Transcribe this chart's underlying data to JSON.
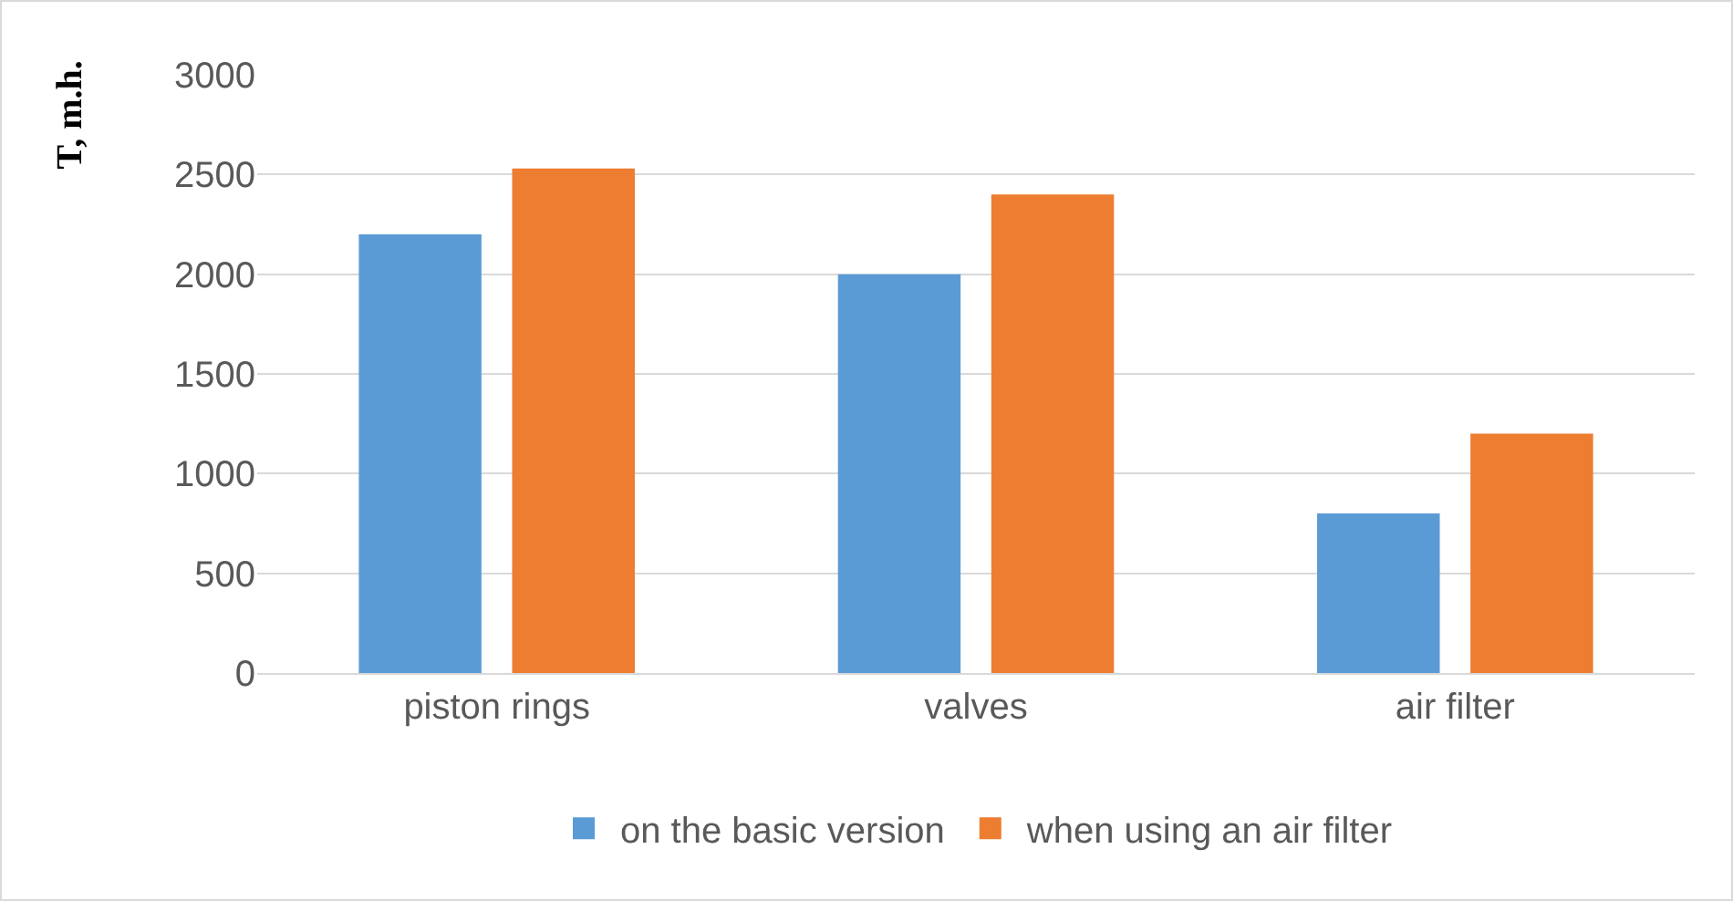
{
  "chart_data": {
    "type": "bar",
    "ylabel": "T, m.h.",
    "categories": [
      "piston rings",
      "valves",
      "air filter"
    ],
    "series": [
      {
        "name": "on the basic version",
        "color": "#5b9bd5",
        "values": [
          2200,
          2000,
          800
        ]
      },
      {
        "name": "when using an air filter",
        "color": "#ed7d31",
        "values": [
          2530,
          2400,
          1200
        ]
      }
    ],
    "ylim": [
      0,
      3000
    ],
    "yticks": [
      0,
      500,
      1000,
      1500,
      2000,
      2500,
      3000
    ],
    "grid": "y",
    "legend": "bottom"
  }
}
